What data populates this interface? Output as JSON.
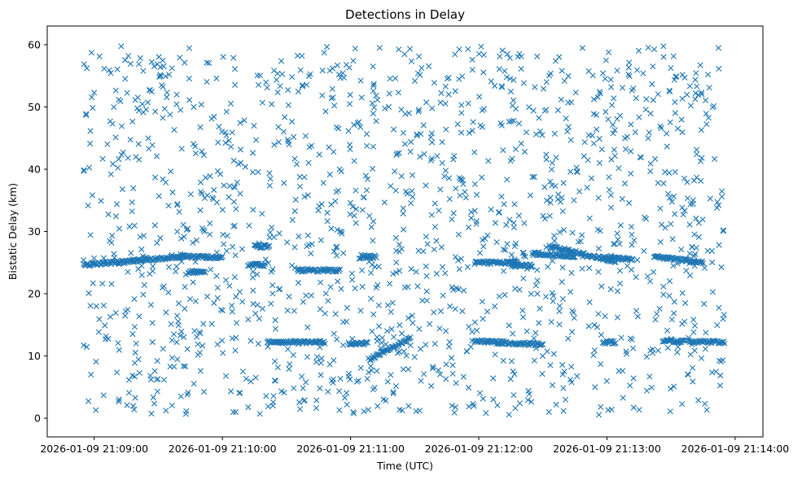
{
  "chart_data": {
    "type": "scatter",
    "title": "Detections in Delay",
    "xlabel": "Time (UTC)",
    "ylabel": "Bistatic Delay (km)",
    "x_start": "2026-01-09 21:08:55",
    "x_end": "2026-01-09 21:13:55",
    "xlim": [
      "2026-01-09 21:08:38",
      "2026-01-09 21:14:13"
    ],
    "ylim": [
      -3.0,
      63.0
    ],
    "x_ticks": [
      "2026-01-09 21:09:00",
      "2026-01-09 21:10:00",
      "2026-01-09 21:11:00",
      "2026-01-09 21:12:00",
      "2026-01-09 21:13:00",
      "2026-01-09 21:14:00"
    ],
    "y_ticks": [
      0,
      10,
      20,
      30,
      40,
      50,
      60
    ],
    "marker": "x",
    "color": "#1f77b4",
    "grid": false,
    "noise_points": 1500,
    "tracks": [
      {
        "x": [
          "2026-01-09 21:08:55",
          "2026-01-09 21:09:40"
        ],
        "y": [
          24.6,
          25.9
        ]
      },
      {
        "x": [
          "2026-01-09 21:09:40",
          "2026-01-09 21:10:00"
        ],
        "y": [
          26.0,
          25.8
        ]
      },
      {
        "x": [
          "2026-01-09 21:09:44",
          "2026-01-09 21:09:52"
        ],
        "y": [
          23.5,
          23.5
        ]
      },
      {
        "x": [
          "2026-01-09 21:10:12",
          "2026-01-09 21:10:20"
        ],
        "y": [
          24.6,
          24.6
        ]
      },
      {
        "x": [
          "2026-01-09 21:10:15",
          "2026-01-09 21:10:22"
        ],
        "y": [
          27.6,
          27.6
        ]
      },
      {
        "x": [
          "2026-01-09 21:10:35",
          "2026-01-09 21:10:55"
        ],
        "y": [
          23.8,
          23.7
        ]
      },
      {
        "x": [
          "2026-01-09 21:10:21",
          "2026-01-09 21:10:48"
        ],
        "y": [
          12.3,
          12.2
        ]
      },
      {
        "x": [
          "2026-01-09 21:10:59",
          "2026-01-09 21:11:08"
        ],
        "y": [
          12.0,
          12.0
        ]
      },
      {
        "x": [
          "2026-01-09 21:11:05",
          "2026-01-09 21:11:12"
        ],
        "y": [
          26.0,
          25.9
        ]
      },
      {
        "x": [
          "2026-01-09 21:11:09",
          "2026-01-09 21:11:28"
        ],
        "y": [
          9.5,
          12.8
        ]
      },
      {
        "x": [
          "2026-01-09 21:11:58",
          "2026-01-09 21:12:30"
        ],
        "y": [
          12.4,
          11.8
        ]
      },
      {
        "x": [
          "2026-01-09 21:11:58",
          "2026-01-09 21:12:18"
        ],
        "y": [
          25.0,
          25.0
        ]
      },
      {
        "x": [
          "2026-01-09 21:12:15",
          "2026-01-09 21:12:25"
        ],
        "y": [
          24.6,
          24.5
        ]
      },
      {
        "x": [
          "2026-01-09 21:12:25",
          "2026-01-09 21:12:45"
        ],
        "y": [
          26.4,
          26.0
        ]
      },
      {
        "x": [
          "2026-01-09 21:12:33",
          "2026-01-09 21:13:04"
        ],
        "y": [
          27.6,
          25.2
        ]
      },
      {
        "x": [
          "2026-01-09 21:12:58",
          "2026-01-09 21:13:12"
        ],
        "y": [
          25.8,
          25.6
        ]
      },
      {
        "x": [
          "2026-01-09 21:12:58",
          "2026-01-09 21:13:04"
        ],
        "y": [
          12.2,
          12.2
        ]
      },
      {
        "x": [
          "2026-01-09 21:13:22",
          "2026-01-09 21:13:37"
        ],
        "y": [
          25.9,
          25.4
        ]
      },
      {
        "x": [
          "2026-01-09 21:13:37",
          "2026-01-09 21:13:45"
        ],
        "y": [
          25.3,
          25.1
        ]
      },
      {
        "x": [
          "2026-01-09 21:13:26",
          "2026-01-09 21:13:36"
        ],
        "y": [
          12.4,
          12.3
        ]
      },
      {
        "x": [
          "2026-01-09 21:13:38",
          "2026-01-09 21:13:55"
        ],
        "y": [
          12.3,
          12.2
        ]
      }
    ]
  }
}
